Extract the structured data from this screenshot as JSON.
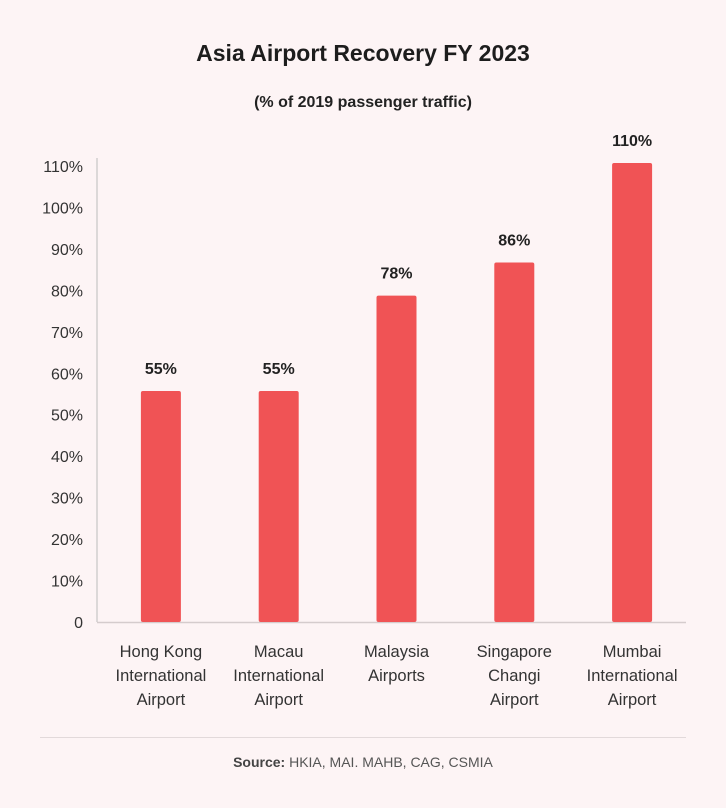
{
  "chart_data": {
    "type": "bar",
    "title": "Asia Airport Recovery FY 2023",
    "subtitle": "(% of 2019 passenger traffic)",
    "categories": [
      [
        "Hong Kong",
        "International",
        "Airport"
      ],
      [
        "Macau",
        "International",
        "Airport"
      ],
      [
        "Malaysia",
        "Airports"
      ],
      [
        "Singapore",
        "Changi",
        "Airport"
      ],
      [
        "Mumbai",
        "International",
        "Airport"
      ]
    ],
    "values": [
      55,
      55,
      78,
      86,
      110
    ],
    "data_labels": [
      "55%",
      "55%",
      "78%",
      "86%",
      "110%"
    ],
    "ylim": [
      0,
      110
    ],
    "yticks": [
      0,
      10,
      20,
      30,
      40,
      50,
      60,
      70,
      80,
      90,
      100,
      110
    ],
    "ytick_labels": [
      "0",
      "10%",
      "20%",
      "30%",
      "40%",
      "50%",
      "60%",
      "70%",
      "80%",
      "90%",
      "100%",
      "110%"
    ],
    "grid": false,
    "bar_color": "#f05355"
  },
  "source": {
    "label": "Source:",
    "text": " HKIA, MAI. MAHB, CAG, CSMIA"
  }
}
